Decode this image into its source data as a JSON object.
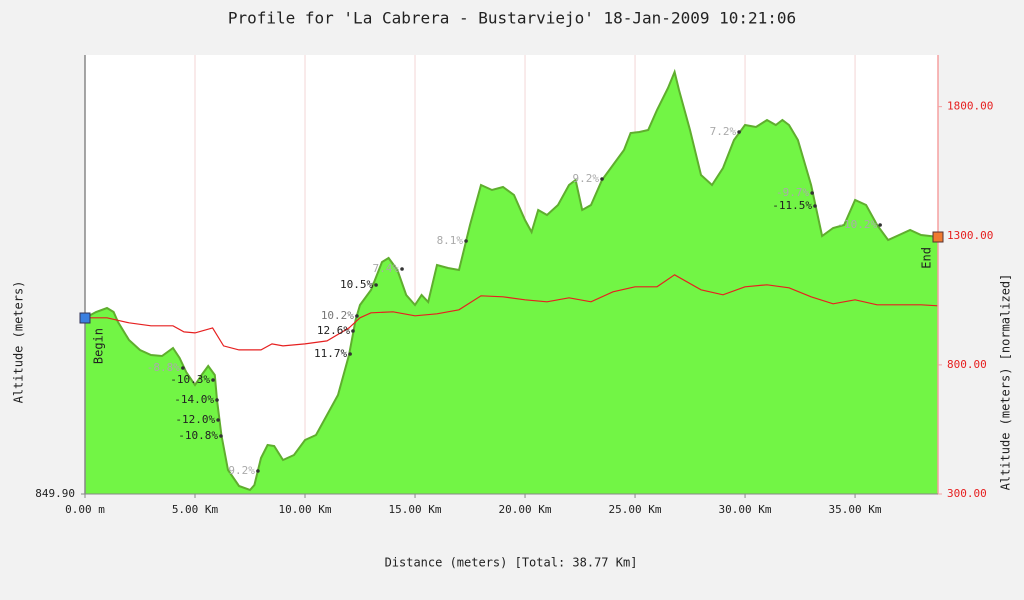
{
  "chart_data": {
    "type": "area",
    "title": "Profile for 'La Cabrera - Bustarviejo' 18-Jan-2009 10:21:06",
    "xlabel": "Distance (meters) [Total: 38.77 Km]",
    "ylabel": "Altitude (meters)",
    "y2label": "Altitude (meters) [normalized]",
    "xlim": [
      0,
      38.77
    ],
    "xticks": [
      {
        "value": 0,
        "label": "0.00 m"
      },
      {
        "value": 5,
        "label": "5.00 Km"
      },
      {
        "value": 10,
        "label": "10.00 Km"
      },
      {
        "value": 15,
        "label": "15.00 Km"
      },
      {
        "value": 20,
        "label": "20.00 Km"
      },
      {
        "value": 25,
        "label": "25.00 Km"
      },
      {
        "value": 30,
        "label": "30.00 Km"
      },
      {
        "value": 35,
        "label": "35.00 Km"
      }
    ],
    "ylim": [
      849.9,
      1288.9
    ],
    "yticks": [
      {
        "value": 849.9,
        "label": "849.90"
      }
    ],
    "y2lim": [
      300,
      2000
    ],
    "y2ticks": [
      {
        "value": 300,
        "label": "300.00"
      },
      {
        "value": 800,
        "label": "800.00"
      },
      {
        "value": 1300,
        "label": "1300.00"
      },
      {
        "value": 1800,
        "label": "1800.00"
      }
    ],
    "grid": true,
    "series": [
      {
        "color": "#5fae2e",
        "fill": "#72f545",
        "x": [
          0,
          0.5,
          1,
          1.3,
          1.5,
          2,
          2.5,
          3,
          3.5,
          4,
          4.3,
          4.6,
          5,
          5.3,
          5.6,
          5.9,
          6,
          6.2,
          6.5,
          7,
          7.5,
          7.7,
          8,
          8.3,
          8.6,
          9,
          9.5,
          10,
          10.5,
          11,
          11.5,
          12,
          12.3,
          12.5,
          13,
          13.5,
          13.8,
          14.2,
          14.6,
          15,
          15.3,
          15.6,
          16,
          16.5,
          17,
          17.5,
          18,
          18.5,
          19,
          19.5,
          20,
          20.3,
          20.6,
          21,
          21.5,
          22,
          22.3,
          22.6,
          23,
          23.5,
          24,
          24.5,
          24.8,
          25.2,
          25.6,
          26,
          26.5,
          26.8,
          27,
          27.5,
          28,
          28.5,
          29,
          29.5,
          30,
          30.5,
          31,
          31.4,
          31.7,
          32,
          32.4,
          33,
          33.5,
          34,
          34.5,
          35,
          35.5,
          36,
          36.5,
          37,
          37.5,
          38,
          38.4,
          38.77
        ],
        "values": [
          1025.9,
          1031.9,
          1035.9,
          1031.9,
          1021.9,
          1003.9,
          993.9,
          988.9,
          987.9,
          995.9,
          985.9,
          971.9,
          958.9,
          968.9,
          977.9,
          968.9,
          943.9,
          908.9,
          873.9,
          857.9,
          853.9,
          858.9,
          885.9,
          898.9,
          897.9,
          883.9,
          888.9,
          903.9,
          908.9,
          928.9,
          948.9,
          988.9,
          1023.9,
          1038.9,
          1053.9,
          1081.9,
          1085.9,
          1073.9,
          1048.9,
          1038.9,
          1048.9,
          1041.9,
          1078.9,
          1075.9,
          1073.9,
          1118.9,
          1158.9,
          1153.9,
          1156.9,
          1148.9,
          1123.9,
          1111.9,
          1133.9,
          1128.9,
          1138.9,
          1158.9,
          1163.9,
          1133.9,
          1138.9,
          1163.9,
          1178.9,
          1193.9,
          1210.9,
          1211.9,
          1213.9,
          1233.9,
          1255.9,
          1271.9,
          1253.9,
          1213.9,
          1168.9,
          1158.9,
          1175.9,
          1203.9,
          1218.9,
          1216.9,
          1223.9,
          1218.9,
          1223.9,
          1218.9,
          1203.9,
          1158.9,
          1107.9,
          1115.9,
          1118.9,
          1143.9,
          1138.9,
          1118.9,
          1103.9,
          1108.9,
          1113.9,
          1108.9,
          1107.9,
          1106.9
        ]
      },
      {
        "color": "#e62020",
        "axis": "y2",
        "x": [
          0,
          1,
          2,
          3,
          4,
          4.5,
          5,
          5.8,
          6.3,
          7,
          8,
          8.5,
          9,
          10,
          11,
          12,
          12.5,
          13,
          14,
          15,
          16,
          17,
          18,
          19,
          20,
          21,
          22,
          23,
          24,
          25,
          26,
          26.8,
          28,
          29,
          30,
          31,
          32,
          33,
          34,
          35,
          36,
          37,
          38,
          38.77
        ],
        "values": [
          982.2,
          982.2,
          962.8,
          951.2,
          951.2,
          927.9,
          924,
          943.4,
          873.6,
          858.1,
          858.1,
          881.4,
          873.6,
          881.4,
          893,
          943.4,
          982.2,
          1001.6,
          1005.4,
          989.9,
          997.7,
          1013.2,
          1067.4,
          1063.6,
          1051.9,
          1044.2,
          1059.7,
          1044.2,
          1083,
          1102.3,
          1102.3,
          1148.8,
          1090.7,
          1071.3,
          1102.3,
          1110.1,
          1098.5,
          1063.6,
          1036.4,
          1051.9,
          1032.6,
          1032.6,
          1032.6,
          1028.7
        ]
      }
    ],
    "begin_label": "Begin",
    "end_label": "End",
    "begin_color": "#3a7fe0",
    "end_color": "#f07a30",
    "annotations": [
      {
        "text": "-8.8%",
        "x": 4.45,
        "y": 975.9,
        "color": "#aaaaaa"
      },
      {
        "text": "-10.3%",
        "x": 5.82,
        "y": 963.9,
        "color": "#222222"
      },
      {
        "text": "-14.0%",
        "x": 6.0,
        "y": 943.9,
        "color": "#222222"
      },
      {
        "text": "-12.0%",
        "x": 6.05,
        "y": 923.9,
        "color": "#222222"
      },
      {
        "text": "-10.8%",
        "x": 6.18,
        "y": 907.9,
        "color": "#222222"
      },
      {
        "text": "9.2%",
        "x": 7.86,
        "y": 872.9,
        "color": "#aaaaaa"
      },
      {
        "text": "11.7%",
        "x": 12.05,
        "y": 989.9,
        "color": "#222222"
      },
      {
        "text": "12.6%",
        "x": 12.18,
        "y": 1012.9,
        "color": "#222222"
      },
      {
        "text": "10.2%",
        "x": 12.36,
        "y": 1027.9,
        "color": "#777777"
      },
      {
        "text": "10.5%",
        "x": 13.23,
        "y": 1058.9,
        "color": "#222222"
      },
      {
        "text": "7.4%",
        "x": 14.41,
        "y": 1074.9,
        "color": "#aaaaaa"
      },
      {
        "text": "8.1%",
        "x": 17.32,
        "y": 1102.9,
        "color": "#aaaaaa"
      },
      {
        "text": "9.2%",
        "x": 23.5,
        "y": 1164.9,
        "color": "#aaaaaa"
      },
      {
        "text": "7.2%",
        "x": 29.73,
        "y": 1211.9,
        "color": "#aaaaaa"
      },
      {
        "text": "-9.7%",
        "x": 33.05,
        "y": 1150.9,
        "color": "#aaaaaa"
      },
      {
        "text": "-11.5%",
        "x": 33.18,
        "y": 1137.9,
        "color": "#222222"
      },
      {
        "text": "-10.2%",
        "x": 36.14,
        "y": 1118.9,
        "color": "#aaaaaa"
      }
    ]
  }
}
